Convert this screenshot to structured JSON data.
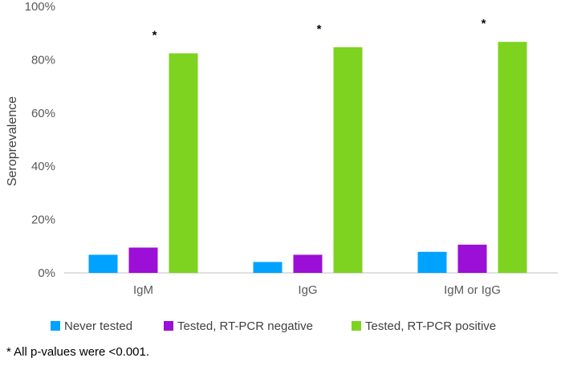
{
  "chart_data": {
    "type": "bar",
    "categories": [
      "IgM",
      "IgG",
      "IgM or IgG"
    ],
    "series": [
      {
        "name": "Never tested",
        "color": "#00A2FF",
        "values": [
          6.8,
          4.1,
          7.9
        ]
      },
      {
        "name": "Tested, RT-PCR negative",
        "color": "#9B0FD6",
        "values": [
          9.5,
          6.8,
          10.6
        ]
      },
      {
        "name": "Tested, RT-PCR positive",
        "color": "#7ED321",
        "values": [
          82.4,
          84.7,
          86.7
        ]
      }
    ],
    "title": "",
    "xlabel": "",
    "ylabel": "Seroprevalence",
    "ylim": [
      0,
      100
    ],
    "yticks": [
      "0%",
      "20%",
      "40%",
      "60%",
      "80%",
      "100%"
    ],
    "yticks_values": [
      0,
      20,
      40,
      60,
      80,
      100
    ],
    "significance_marks": [
      "*",
      "*",
      "*"
    ],
    "grid": false,
    "legend_position": "bottom"
  },
  "footnote": "* All p-values were <0.001."
}
